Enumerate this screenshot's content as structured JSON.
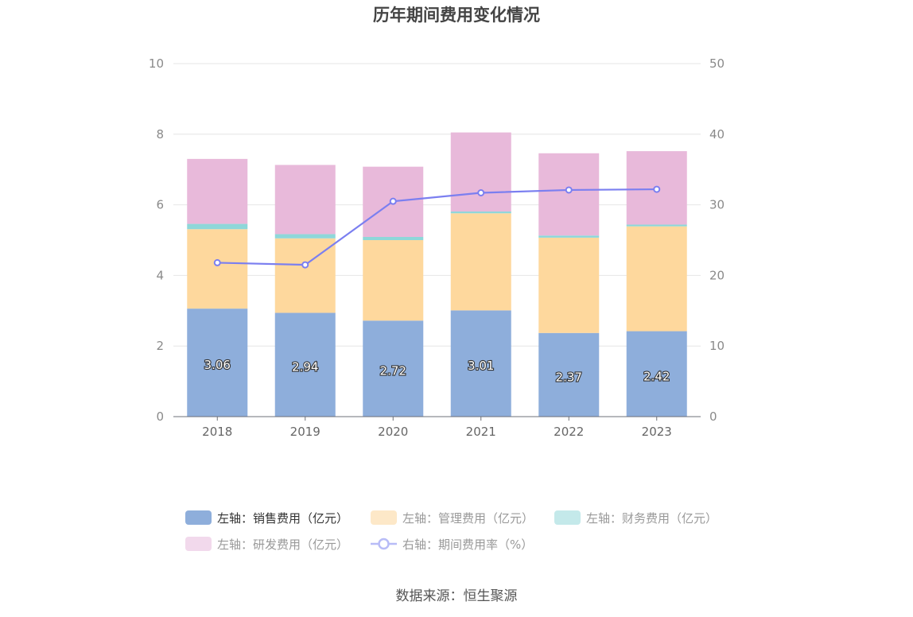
{
  "chart_data": {
    "type": "bar",
    "title": "历年期间费用变化情况",
    "categories": [
      "2018",
      "2019",
      "2020",
      "2021",
      "2022",
      "2023"
    ],
    "stacked": true,
    "y_left": {
      "min": 0,
      "max": 10,
      "ticks": [
        "0",
        "2",
        "4",
        "6",
        "8",
        "10"
      ]
    },
    "y_right": {
      "min": 0,
      "max": 50,
      "ticks": [
        "0",
        "10",
        "20",
        "30",
        "40",
        "50"
      ]
    },
    "grid": true,
    "legend_position": "bottom",
    "series": [
      {
        "name": "左轴：销售费用（亿元）",
        "type": "bar",
        "axis": "left",
        "color": "#8eaedb",
        "values": [
          3.06,
          2.94,
          2.72,
          3.01,
          2.37,
          2.42
        ],
        "labels": [
          "3.06",
          "2.94",
          "2.72",
          "3.01",
          "2.37",
          "2.42"
        ]
      },
      {
        "name": "左轴：管理费用（亿元）",
        "type": "bar",
        "axis": "left",
        "color": "#fed89d",
        "values": [
          2.25,
          2.11,
          2.28,
          2.75,
          2.7,
          2.97
        ]
      },
      {
        "name": "左轴：财务费用（亿元）",
        "type": "bar",
        "axis": "left",
        "color": "#8ed7d9",
        "values": [
          0.15,
          0.12,
          0.09,
          0.05,
          0.06,
          0.05
        ]
      },
      {
        "name": "左轴：研发费用（亿元）",
        "type": "bar",
        "axis": "left",
        "color": "#e8b9da",
        "values": [
          1.84,
          1.96,
          1.99,
          2.24,
          2.33,
          2.08
        ]
      },
      {
        "name": "右轴：期间费用率（%）",
        "type": "line",
        "axis": "right",
        "color": "#7b7ff0",
        "values": [
          21.8,
          21.5,
          30.5,
          31.7,
          32.1,
          32.2
        ]
      }
    ],
    "legend_colors": [
      "#8eaedb",
      "#fde8c8",
      "#c4e9ea",
      "#f2d9ec",
      "#b8bcf7"
    ]
  },
  "source": "数据来源：恒生聚源"
}
